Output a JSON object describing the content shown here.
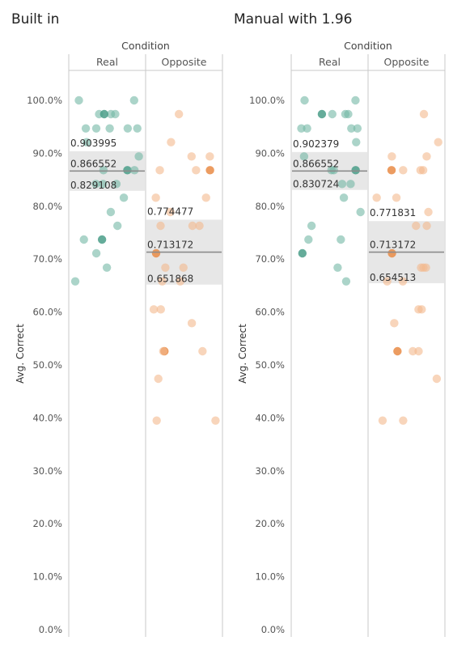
{
  "chart_data": [
    {
      "type": "scatter",
      "title": "Built in",
      "column_header": "Condition",
      "categories": [
        "Real",
        "Opposite"
      ],
      "ylabel": "Avg. Correct",
      "ylim": [
        0,
        1.05
      ],
      "yticks": [
        "0.0%",
        "10.0%",
        "20.0%",
        "30.0%",
        "40.0%",
        "50.0%",
        "60.0%",
        "70.0%",
        "80.0%",
        "90.0%",
        "100.0%"
      ],
      "grid": false,
      "series": [
        {
          "category": "Real",
          "color": "#73b8a5",
          "highlight_color": "#4a9e88",
          "points": [
            1.0,
            1.0,
            0.974,
            0.974,
            0.974,
            0.974,
            0.947,
            0.947,
            0.947,
            0.947,
            0.947,
            0.921,
            0.894,
            0.868,
            0.868,
            0.868,
            0.842,
            0.842,
            0.842,
            0.816,
            0.789,
            0.763,
            0.737,
            0.737,
            0.711,
            0.684,
            0.658
          ],
          "ci_upper": 0.903995,
          "mean": 0.866552,
          "ci_lower": 0.829108,
          "labels": {
            "upper": "0.903995",
            "mean": "0.866552",
            "lower": "0.829108"
          }
        },
        {
          "category": "Opposite",
          "color": "#f4b98e",
          "highlight_color": "#e98b45",
          "points": [
            0.974,
            0.921,
            0.894,
            0.894,
            0.868,
            0.868,
            0.868,
            0.816,
            0.816,
            0.789,
            0.763,
            0.763,
            0.763,
            0.711,
            0.684,
            0.684,
            0.658,
            0.658,
            0.605,
            0.605,
            0.579,
            0.526,
            0.526,
            0.526,
            0.474,
            0.395,
            0.395
          ],
          "ci_upper": 0.774477,
          "mean": 0.713172,
          "ci_lower": 0.651868,
          "labels": {
            "upper": "0.774477",
            "mean": "0.713172",
            "lower": "0.651868"
          }
        }
      ]
    },
    {
      "type": "scatter",
      "title": "Manual with 1.96",
      "column_header": "Condition",
      "categories": [
        "Real",
        "Opposite"
      ],
      "ylabel": "Avg. Correct",
      "ylim": [
        0,
        1.05
      ],
      "yticks": [
        "0.0%",
        "10.0%",
        "20.0%",
        "30.0%",
        "40.0%",
        "50.0%",
        "60.0%",
        "70.0%",
        "80.0%",
        "90.0%",
        "100.0%"
      ],
      "grid": false,
      "series": [
        {
          "category": "Real",
          "color": "#73b8a5",
          "highlight_color": "#4a9e88",
          "points": [
            1.0,
            1.0,
            0.974,
            0.974,
            0.974,
            0.974,
            0.947,
            0.947,
            0.947,
            0.947,
            0.921,
            0.894,
            0.868,
            0.868,
            0.868,
            0.842,
            0.842,
            0.816,
            0.789,
            0.763,
            0.737,
            0.737,
            0.711,
            0.684,
            0.658
          ],
          "ci_upper": 0.902379,
          "mean": 0.866552,
          "ci_lower": 0.830724,
          "labels": {
            "upper": "0.902379",
            "mean": "0.866552",
            "lower": "0.830724"
          }
        },
        {
          "category": "Opposite",
          "color": "#f4b98e",
          "highlight_color": "#e98b45",
          "points": [
            0.974,
            0.921,
            0.894,
            0.894,
            0.868,
            0.868,
            0.868,
            0.868,
            0.816,
            0.816,
            0.789,
            0.763,
            0.763,
            0.711,
            0.684,
            0.684,
            0.684,
            0.658,
            0.658,
            0.605,
            0.605,
            0.579,
            0.526,
            0.526,
            0.526,
            0.474,
            0.395,
            0.395
          ],
          "ci_upper": 0.771831,
          "mean": 0.713172,
          "ci_lower": 0.654513,
          "labels": {
            "upper": "0.771831",
            "mean": "0.713172",
            "lower": "0.654513"
          }
        }
      ]
    }
  ]
}
